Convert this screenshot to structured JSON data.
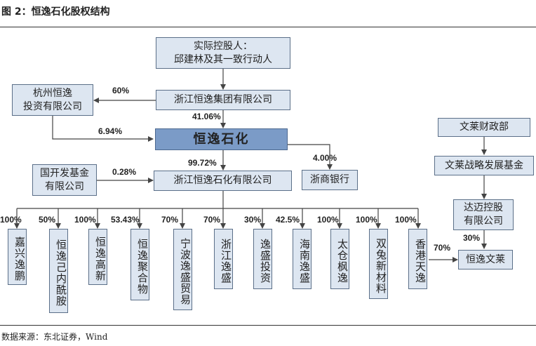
{
  "figure_title": "图 2：恒逸石化股权结构",
  "source": "数据来源：东北证券，Wind",
  "nodes": {
    "controller": "实际控股人：\n邱建林及其一致行动人",
    "group": "浙江恒逸集团有限公司",
    "hangzhou": "杭州恒逸\n投资有限公司",
    "hengyi": "恒逸石化",
    "zheshang": "浙商银行",
    "guokai": "国开发基金\n有限公司",
    "zhejiang_hengyi": "浙江恒逸石化有限公司",
    "wenlai_finance": "文莱财政部",
    "wenlai_fund": "文莱战略发展基金",
    "damai": "达迈控股\n有限公司",
    "hengyi_wenlai": "恒逸文莱"
  },
  "subsidiaries": [
    {
      "name": "嘉兴逸鹏",
      "pct": "100%"
    },
    {
      "name": "恒逸己内酰胺",
      "pct": "50%"
    },
    {
      "name": "恒逸高新",
      "pct": "100%"
    },
    {
      "name": "恒逸聚合物",
      "pct": "53.43%"
    },
    {
      "name": "宁波逸盛贸易",
      "pct": "70%"
    },
    {
      "name": "浙江逸盛",
      "pct": "70%"
    },
    {
      "name": "逸盛投资",
      "pct": "30%"
    },
    {
      "name": "海南逸盛",
      "pct": "42.5%"
    },
    {
      "name": "太仓枫逸",
      "pct": "100%"
    },
    {
      "name": "双兔新材料",
      "pct": "100%"
    },
    {
      "name": "香港天逸",
      "pct": "100%"
    }
  ],
  "percentages": {
    "group_to_hangzhou": "60%",
    "group_to_hengyi": "41.06%",
    "hangzhou_to_hengyi": "6.94%",
    "hengyi_to_zheshang": "4.00%",
    "hengyi_to_zhejiang": "99.72%",
    "guokai_to_zhejiang": "0.28%",
    "damai_to_wenlai": "30%",
    "hongkong_to_wenlai": "70%"
  }
}
